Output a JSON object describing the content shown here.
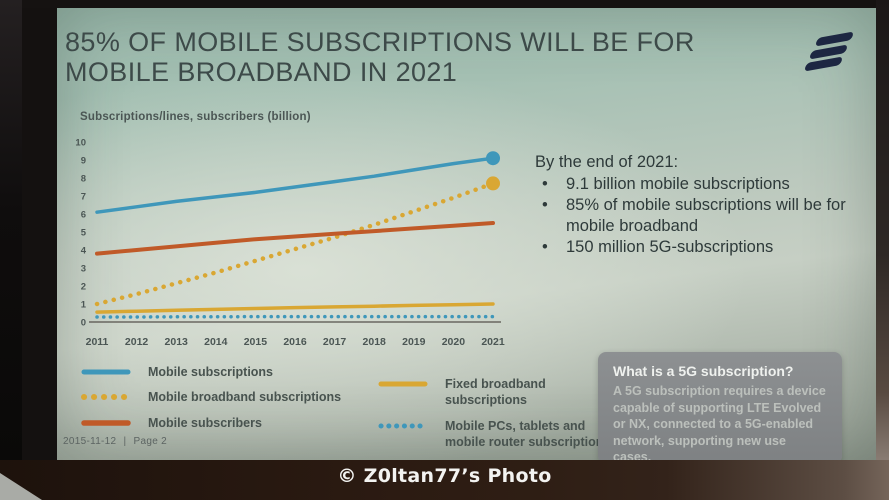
{
  "photo": {
    "watermark": "© Z0ltan77’s Photo"
  },
  "slide": {
    "title_line1": "85% OF MOBILE SUBSCRIPTIONS WILL BE FOR",
    "title_line2": "MOBILE BROADBAND IN 2021",
    "logo_name": "ericsson-logo",
    "key_points": {
      "heading": "By the end of 2021:",
      "bullets": [
        "9.1 billion mobile subscriptions",
        "85% of mobile subscriptions will be for mobile broadband",
        "150 million 5G-subscriptions"
      ]
    },
    "info_box": {
      "title": "What is a 5G subscription?",
      "body": "A 5G subscription requires a device capable of supporting LTE Evolved or NX, connected to a 5G-enabled network, supporting new use cases."
    },
    "footer": {
      "date": "2015-11-12",
      "separator": "|",
      "page": "Page 2"
    }
  },
  "chart_data": {
    "type": "line",
    "title": "Subscriptions/lines, subscribers (billion)",
    "xlabel": "",
    "ylabel": "Subscriptions/lines, subscribers (billion)",
    "x": [
      2011,
      2012,
      2013,
      2014,
      2015,
      2016,
      2017,
      2018,
      2019,
      2020,
      2021
    ],
    "ylim": [
      0,
      10
    ],
    "yticks": [
      0,
      1,
      2,
      3,
      4,
      5,
      6,
      7,
      8,
      9,
      10
    ],
    "grid": false,
    "legend_position": "bottom",
    "series": [
      {
        "name": "Mobile subscriptions",
        "color": "#3f97ba",
        "style": "solid",
        "width": 3.5,
        "end_dot": true,
        "values": [
          6.1,
          6.4,
          6.7,
          6.95,
          7.2,
          7.5,
          7.8,
          8.1,
          8.45,
          8.8,
          9.1
        ]
      },
      {
        "name": "Mobile broadband subscriptions",
        "color": "#d9a733",
        "style": "dotted",
        "width": 4.5,
        "end_dot": true,
        "values": [
          1.0,
          1.55,
          2.15,
          2.75,
          3.4,
          4.05,
          4.7,
          5.4,
          6.15,
          6.9,
          7.7
        ]
      },
      {
        "name": "Mobile subscribers",
        "color": "#c05a28",
        "style": "solid",
        "width": 4,
        "end_dot": false,
        "values": [
          3.8,
          4.0,
          4.2,
          4.4,
          4.6,
          4.75,
          4.9,
          5.05,
          5.2,
          5.35,
          5.5
        ]
      },
      {
        "name": "Fixed broadband subscriptions",
        "color": "#d9a733",
        "style": "solid",
        "width": 3.5,
        "end_dot": false,
        "values": [
          0.55,
          0.6,
          0.65,
          0.7,
          0.75,
          0.8,
          0.84,
          0.88,
          0.92,
          0.96,
          1.0
        ]
      },
      {
        "name": "Mobile PCs, tablets and mobile router subscriptions",
        "color": "#3f97ba",
        "style": "dotted",
        "width": 3.5,
        "end_dot": false,
        "values": [
          0.28,
          0.28,
          0.29,
          0.29,
          0.3,
          0.3,
          0.3,
          0.3,
          0.3,
          0.3,
          0.3
        ]
      }
    ]
  },
  "colors": {
    "slide_background": "#bcc9be",
    "title_text": "#3d4a49",
    "logo_navy": "#1d2742",
    "series_blue": "#3f97ba",
    "series_yellow": "#d9a733",
    "series_orange": "#c05a28",
    "infobox_background": "#85888a",
    "infobox_title_text": "#eff1ee",
    "photo_band": "#2b1b12"
  }
}
